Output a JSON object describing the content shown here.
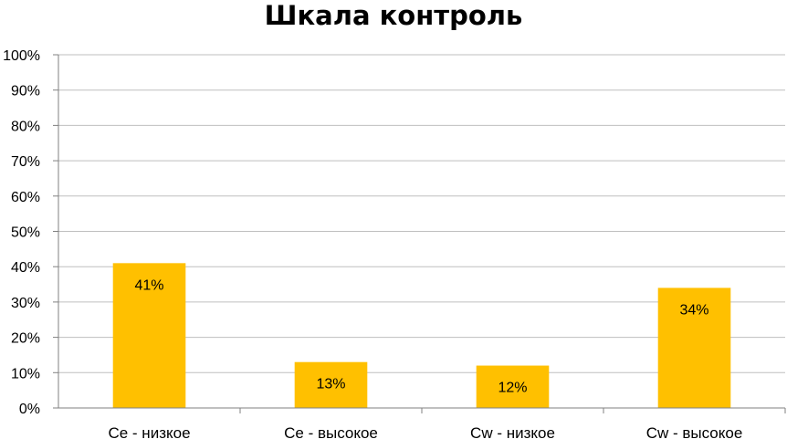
{
  "chart_data": {
    "type": "bar",
    "title": "Шкала контроль",
    "categories": [
      "Се - низкое",
      "Се - высокое",
      "Cw - низкое",
      "Cw - высокое"
    ],
    "values": [
      41,
      13,
      12,
      34
    ],
    "data_labels": [
      "41%",
      "13%",
      "12%",
      "34%"
    ],
    "ylim": [
      0,
      100
    ],
    "y_ticks": [
      "0%",
      "10%",
      "20%",
      "30%",
      "40%",
      "50%",
      "60%",
      "70%",
      "80%",
      "90%",
      "100%"
    ],
    "grid": true,
    "legend": "none",
    "bar_color": "#FFC000",
    "grid_color": "#BFBFBF"
  }
}
